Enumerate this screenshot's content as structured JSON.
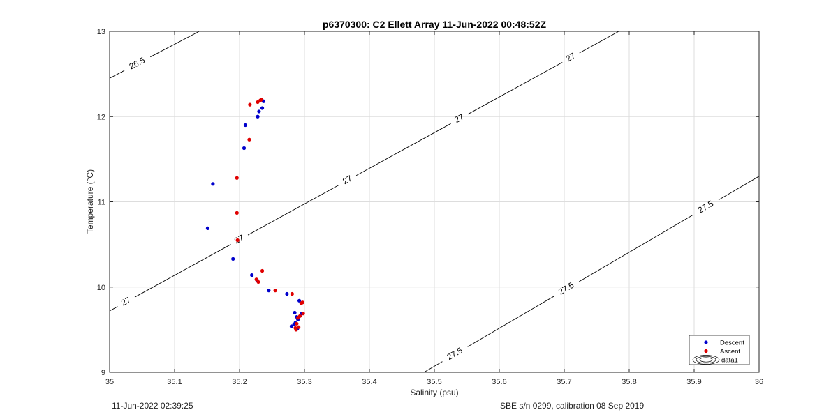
{
  "footer": {
    "timestamp": "11-Jun-2022 02:39:25",
    "instrument": "SBE s/n 0299, calibration 08 Sep 2019"
  },
  "chart_data": {
    "type": "scatter",
    "title": "p6370300: C2 Ellett Array 11-Jun-2022 00:48:52Z",
    "xlabel": "Salinity (psu)",
    "ylabel": "Temperature (°C)",
    "xlim": [
      35,
      36
    ],
    "ylim": [
      9,
      13
    ],
    "xticks": [
      "35",
      "35.1",
      "35.2",
      "35.3",
      "35.4",
      "35.5",
      "35.6",
      "35.7",
      "35.8",
      "35.9",
      "36"
    ],
    "yticks": [
      "9",
      "10",
      "11",
      "12",
      "13"
    ],
    "grid": true,
    "legend_position": "bottom-right",
    "legend": [
      "Descent",
      "Ascent",
      "data1"
    ],
    "colors": {
      "descent": "#0000cc",
      "ascent": "#e00000",
      "contour": "#000000",
      "grid": "#dddddd"
    },
    "series": [
      {
        "name": "Descent",
        "color": "#0000cc",
        "x": [
          35.237,
          35.235,
          35.23,
          35.228,
          35.209,
          35.207,
          35.159,
          35.151,
          35.19,
          35.219,
          35.227,
          35.245,
          35.273,
          35.292,
          35.285,
          35.296,
          35.288,
          35.29,
          35.286,
          35.284,
          35.28,
          35.289
        ],
        "y": [
          12.18,
          12.1,
          12.06,
          12.0,
          11.9,
          11.63,
          11.21,
          10.69,
          10.33,
          10.14,
          10.08,
          9.96,
          9.92,
          9.84,
          9.7,
          9.69,
          9.65,
          9.62,
          9.58,
          9.56,
          9.54,
          9.51
        ]
      },
      {
        "name": "Ascent",
        "color": "#e00000",
        "x": [
          35.232,
          35.228,
          35.234,
          35.216,
          35.215,
          35.196,
          35.196,
          35.197,
          35.235,
          35.226,
          35.229,
          35.255,
          35.281,
          35.297,
          35.295,
          35.298,
          35.293,
          35.29,
          35.288,
          35.286,
          35.291,
          35.287
        ],
        "y": [
          12.19,
          12.17,
          12.2,
          12.14,
          11.73,
          11.28,
          10.87,
          10.55,
          10.19,
          10.09,
          10.06,
          9.96,
          9.92,
          9.82,
          9.81,
          9.69,
          9.66,
          9.64,
          9.57,
          9.52,
          9.53,
          9.5
        ]
      }
    ],
    "contours": [
      {
        "label": "26.5",
        "points": [
          [
            35.0,
            12.45
          ],
          [
            35.138,
            13.0
          ]
        ],
        "label_positions": [
          [
            35.042,
            12.63
          ]
        ]
      },
      {
        "label": "27",
        "points": [
          [
            35.0,
            9.72
          ],
          [
            35.784,
            13.0
          ]
        ],
        "label_positions": [
          [
            35.026,
            9.82
          ],
          [
            35.198,
            10.58
          ],
          [
            35.366,
            11.26
          ],
          [
            35.538,
            11.98
          ],
          [
            35.711,
            12.68
          ]
        ]
      },
      {
        "label": "27.5",
        "points": [
          [
            35.484,
            9.0
          ],
          [
            36.0,
            11.3
          ]
        ],
        "label_positions": [
          [
            35.532,
            9.21
          ],
          [
            35.704,
            9.97
          ],
          [
            35.934,
            10.73
          ]
        ]
      }
    ]
  }
}
